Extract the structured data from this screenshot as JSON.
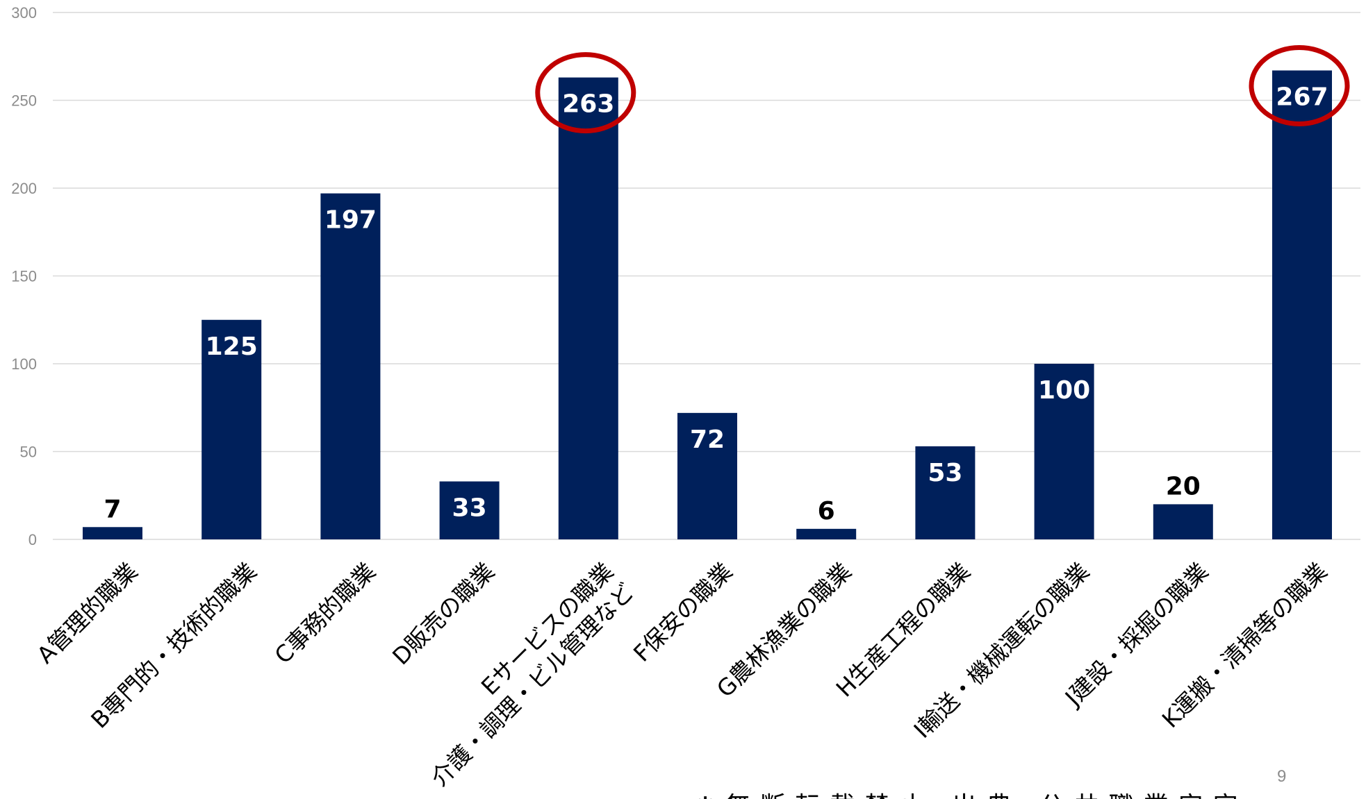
{
  "chart_data": {
    "type": "bar",
    "title": "",
    "xlabel": "",
    "ylabel": "",
    "ylim": [
      0,
      300
    ],
    "yticks": [
      0,
      50,
      100,
      150,
      200,
      250,
      300
    ],
    "grid": true,
    "categories": [
      "A管理的職業",
      "B専門的・技術的職業",
      "C事務的職業",
      "D販売の職業",
      "Eサービスの職業\n介護・調理・ビル管理など",
      "F保安の職業",
      "G農林漁業の職業",
      "H生産工程の職業",
      "I輸送・機械運転の職業",
      "J建設・採掘の職業",
      "K運搬・清掃等の職業"
    ],
    "values": [
      7,
      125,
      197,
      33,
      263,
      72,
      6,
      53,
      100,
      20,
      267
    ],
    "data_labels": [
      "7",
      "125",
      "197",
      "33",
      "263",
      "72",
      "6",
      "53",
      "100",
      "20",
      "267"
    ],
    "highlighted": [
      "Eサービスの職業\n介護・調理・ビル管理など",
      "K運搬・清掃等の職業"
    ],
    "colors": {
      "bar": "#00205b",
      "grid": "#d9d9d9",
      "highlight_ring": "#c00000",
      "label_inside": "#ffffff",
      "label_outside": "#000000"
    }
  },
  "page": {
    "number": "9",
    "footer": "※無断転載禁止 出典:公共職業安定"
  }
}
